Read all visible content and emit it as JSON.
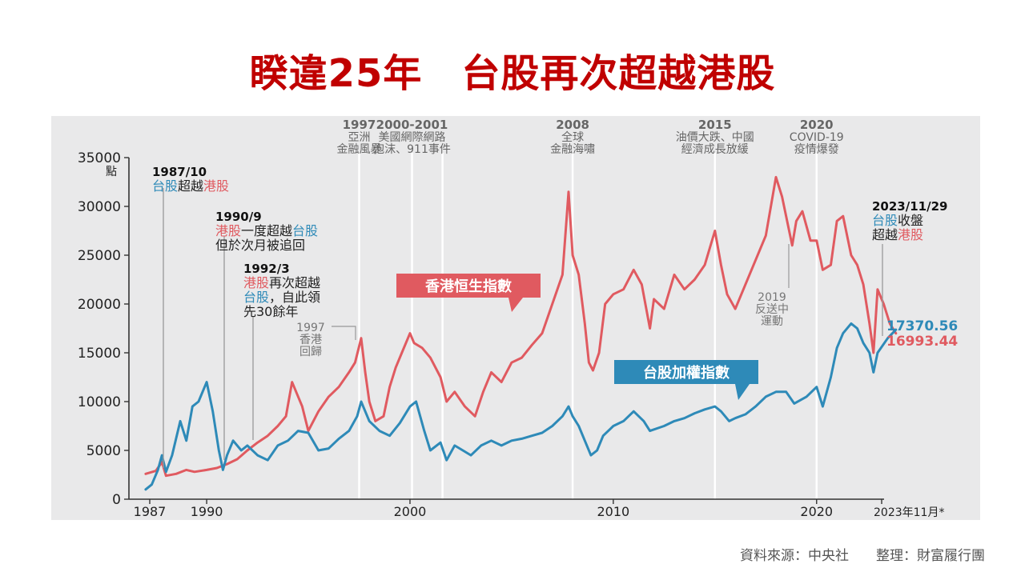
{
  "title": "睽違25年　台股再次超越港股",
  "footer": "資料來源：中央社　　整理：財富履行團",
  "colors": {
    "hk": "#e05a60",
    "tw": "#2e8ab8",
    "title": "#c00000",
    "text": "#222222",
    "muted": "#777777"
  },
  "chart_data": {
    "type": "line",
    "ylabel": "點",
    "ylim": [
      0,
      35000
    ],
    "yticks": [
      0,
      5000,
      10000,
      15000,
      20000,
      25000,
      30000,
      35000
    ],
    "x_tick_labels": [
      "1987",
      "1990",
      "2000",
      "2010",
      "2020",
      "2023年11月*"
    ],
    "xlim": [
      1987.0,
      2023.9
    ],
    "series": [
      {
        "name": "香港恒生指數",
        "x": [
          1987.0,
          1987.5,
          1987.8,
          1988.0,
          1988.5,
          1989.0,
          1989.4,
          1990.0,
          1990.5,
          1991.0,
          1991.5,
          1992.0,
          1992.5,
          1993.0,
          1993.5,
          1993.9,
          1994.2,
          1994.7,
          1995.0,
          1995.5,
          1996.0,
          1996.5,
          1997.0,
          1997.3,
          1997.6,
          1997.8,
          1998.0,
          1998.3,
          1998.7,
          1999.0,
          1999.3,
          1999.6,
          2000.0,
          2000.2,
          2000.6,
          2001.0,
          2001.5,
          2001.8,
          2002.2,
          2002.7,
          2003.2,
          2003.6,
          2004.0,
          2004.5,
          2005.0,
          2005.5,
          2006.0,
          2006.5,
          2007.0,
          2007.5,
          2007.8,
          2008.0,
          2008.3,
          2008.6,
          2008.8,
          2009.0,
          2009.3,
          2009.6,
          2010.0,
          2010.5,
          2011.0,
          2011.4,
          2011.8,
          2012.0,
          2012.5,
          2013.0,
          2013.5,
          2014.0,
          2014.5,
          2015.0,
          2015.3,
          2015.6,
          2016.0,
          2016.5,
          2017.0,
          2017.5,
          2018.0,
          2018.3,
          2018.8,
          2019.0,
          2019.3,
          2019.7,
          2020.0,
          2020.3,
          2020.7,
          2021.0,
          2021.3,
          2021.7,
          2022.0,
          2022.3,
          2022.6,
          2022.8,
          2023.0,
          2023.3,
          2023.6,
          2023.9
        ],
        "y": [
          2600,
          2900,
          3800,
          2400,
          2600,
          3000,
          2800,
          3000,
          3200,
          3600,
          4100,
          5000,
          5800,
          6500,
          7500,
          8500,
          12000,
          9500,
          7000,
          9000,
          10500,
          11500,
          13000,
          14000,
          16500,
          13000,
          10000,
          8000,
          8500,
          11500,
          13500,
          15000,
          17000,
          16000,
          15500,
          14500,
          12500,
          10000,
          11000,
          9500,
          8500,
          11000,
          13000,
          12000,
          14000,
          14500,
          15800,
          17000,
          20000,
          23000,
          31500,
          25000,
          23000,
          18000,
          14000,
          13200,
          15000,
          20000,
          21000,
          21500,
          23500,
          22000,
          17500,
          20500,
          19500,
          23000,
          21500,
          22500,
          24000,
          27500,
          24000,
          21000,
          19500,
          22000,
          24500,
          27000,
          33000,
          31000,
          26000,
          28500,
          29500,
          26500,
          26500,
          23500,
          24000,
          28500,
          29000,
          25000,
          24000,
          22000,
          18000,
          15000,
          21500,
          20000,
          18000,
          16993.44
        ]
      },
      {
        "name": "台股加權指數",
        "x": [
          1987.0,
          1987.3,
          1987.6,
          1987.8,
          1988.0,
          1988.3,
          1988.7,
          1989.0,
          1989.3,
          1989.6,
          1990.0,
          1990.3,
          1990.6,
          1990.8,
          1991.0,
          1991.3,
          1991.7,
          1992.0,
          1992.5,
          1993.0,
          1993.5,
          1994.0,
          1994.5,
          1995.0,
          1995.5,
          1996.0,
          1996.5,
          1997.0,
          1997.4,
          1997.6,
          1998.0,
          1998.5,
          1999.0,
          1999.5,
          2000.0,
          2000.3,
          2000.7,
          2001.0,
          2001.5,
          2001.8,
          2002.2,
          2002.6,
          2003.0,
          2003.5,
          2004.0,
          2004.5,
          2005.0,
          2005.5,
          2006.0,
          2006.5,
          2007.0,
          2007.5,
          2007.8,
          2008.0,
          2008.3,
          2008.6,
          2008.9,
          2009.2,
          2009.5,
          2010.0,
          2010.5,
          2011.0,
          2011.5,
          2011.8,
          2012.5,
          2013.0,
          2013.5,
          2014.0,
          2014.5,
          2015.0,
          2015.3,
          2015.7,
          2016.0,
          2016.5,
          2017.0,
          2017.5,
          2018.0,
          2018.5,
          2018.9,
          2019.5,
          2020.0,
          2020.3,
          2020.7,
          2021.0,
          2021.3,
          2021.7,
          2022.0,
          2022.3,
          2022.6,
          2022.8,
          2023.0,
          2023.5,
          2023.9
        ],
        "y": [
          1000,
          1500,
          3000,
          4500,
          2800,
          4500,
          8000,
          6000,
          9500,
          10000,
          12000,
          9000,
          5000,
          3000,
          4500,
          6000,
          5000,
          5500,
          4500,
          4000,
          5500,
          6000,
          7000,
          6800,
          5000,
          5200,
          6200,
          7000,
          8500,
          10000,
          8000,
          7000,
          6500,
          7800,
          9500,
          10000,
          7000,
          5000,
          5800,
          4000,
          5500,
          5000,
          4500,
          5500,
          6000,
          5500,
          6000,
          6200,
          6500,
          6800,
          7500,
          8500,
          9500,
          8500,
          7500,
          6000,
          4500,
          5000,
          6500,
          7500,
          8000,
          9000,
          8000,
          7000,
          7500,
          8000,
          8300,
          8800,
          9200,
          9500,
          9000,
          8000,
          8300,
          8700,
          9500,
          10500,
          11000,
          11000,
          9800,
          10500,
          11500,
          9500,
          12500,
          15500,
          17000,
          18000,
          17500,
          16000,
          15000,
          13000,
          15000,
          16500,
          17370.56
        ]
      }
    ],
    "end_labels": [
      "17370.56",
      "16993.44"
    ],
    "events": [
      {
        "x": 1997.5,
        "lines": [
          "1997",
          "亞洲",
          "金融風暴"
        ]
      },
      {
        "x": 2000.1,
        "lines": [
          "2000-2001",
          "美國網際網路",
          "泡沫、911事件"
        ]
      },
      {
        "x": 2001.6,
        "lines": []
      },
      {
        "x": 2008.0,
        "lines": [
          "2008",
          "全球",
          "金融海嘯"
        ]
      },
      {
        "x": 2015.0,
        "lines": [
          "2015",
          "油價大跌、中國",
          "經濟成長放緩"
        ]
      },
      {
        "x": 2020.0,
        "lines": [
          "2020",
          "COVID-19",
          "疫情爆發"
        ]
      }
    ],
    "annotations": [
      {
        "id": "a1987",
        "date": "1987/10",
        "rich": [
          [
            [
              "台股",
              "tw"
            ],
            [
              "超越",
              "text"
            ],
            [
              "港股",
              "hk"
            ]
          ]
        ]
      },
      {
        "id": "a1990",
        "date": "1990/9",
        "rich": [
          [
            [
              "港股",
              "hk"
            ],
            [
              "一度超越",
              "text"
            ],
            [
              "台股",
              "tw"
            ]
          ],
          [
            [
              "但於次月被追回",
              "text"
            ]
          ]
        ]
      },
      {
        "id": "a1992",
        "date": "1992/3",
        "rich": [
          [
            [
              "港股",
              "hk"
            ],
            [
              "再次超越",
              "text"
            ]
          ],
          [
            [
              "台股",
              "tw"
            ],
            [
              "，自此領",
              "text"
            ]
          ],
          [
            [
              "先30餘年",
              "text"
            ]
          ]
        ]
      },
      {
        "id": "a2023",
        "date": "2023/11/29",
        "rich": [
          [
            [
              "台股",
              "tw"
            ],
            [
              "收盤",
              "text"
            ]
          ],
          [
            [
              "超越",
              "text"
            ],
            [
              "港股",
              "hk"
            ]
          ]
        ]
      }
    ],
    "notes": [
      {
        "id": "n1997",
        "lines": [
          "1997",
          "香港",
          "回歸"
        ]
      },
      {
        "id": "n2019",
        "lines": [
          "2019",
          "反送中",
          "運動"
        ]
      }
    ]
  }
}
